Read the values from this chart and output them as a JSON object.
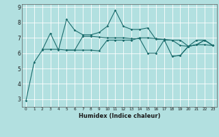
{
  "title": "",
  "xlabel": "Humidex (Indice chaleur)",
  "ylabel": "",
  "background_color": "#b2e0e0",
  "grid_color": "#ffffff",
  "line_color": "#1a6b6b",
  "x_values": [
    0,
    1,
    2,
    3,
    4,
    5,
    6,
    7,
    8,
    9,
    10,
    11,
    12,
    13,
    14,
    15,
    16,
    17,
    18,
    19,
    20,
    21,
    22,
    23
  ],
  "series1": [
    2.9,
    5.4,
    6.2,
    7.3,
    6.2,
    8.2,
    7.5,
    7.2,
    7.2,
    7.35,
    7.75,
    8.8,
    7.75,
    7.55,
    7.55,
    7.65,
    6.9,
    6.9,
    5.8,
    5.85,
    6.45,
    6.55,
    6.85,
    6.5
  ],
  "series2": [
    null,
    null,
    6.25,
    6.25,
    6.25,
    6.2,
    6.2,
    6.2,
    6.2,
    6.15,
    6.85,
    6.85,
    6.85,
    6.85,
    7.0,
    7.0,
    6.95,
    6.9,
    6.85,
    6.85,
    6.45,
    6.55,
    6.85,
    6.5
  ],
  "series3": [
    null,
    null,
    null,
    null,
    null,
    6.2,
    6.2,
    7.1,
    7.1,
    7.05,
    7.0,
    7.0,
    7.0,
    6.95,
    6.95,
    6.0,
    6.0,
    6.85,
    6.85,
    6.5,
    6.45,
    6.55,
    6.55,
    6.5
  ],
  "series4": [
    null,
    null,
    null,
    null,
    null,
    null,
    null,
    null,
    null,
    null,
    null,
    null,
    null,
    null,
    null,
    null,
    null,
    null,
    5.8,
    5.85,
    6.45,
    6.85,
    6.85,
    6.5
  ],
  "ylim": [
    2.5,
    9.2
  ],
  "yticks": [
    3,
    4,
    5,
    6,
    7,
    8,
    9
  ],
  "xlim": [
    -0.5,
    23.5
  ]
}
